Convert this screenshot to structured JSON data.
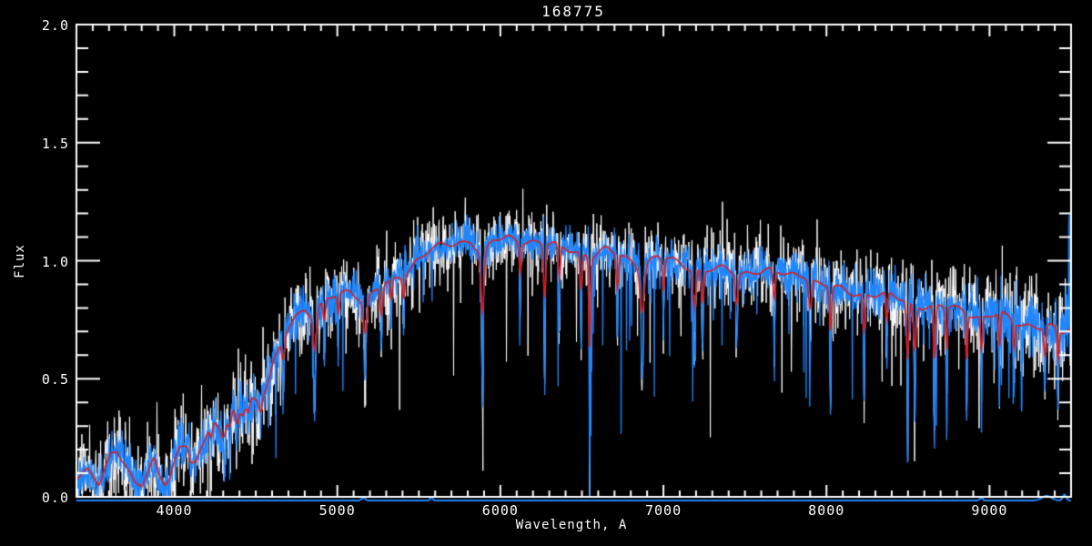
{
  "title": "168775",
  "axes": {
    "xlabel": "Wavelength, A",
    "ylabel": "Flux",
    "xlim": [
      3400,
      9500
    ],
    "ylim": [
      0.0,
      2.0
    ],
    "x_major_ticks": [
      4000,
      5000,
      6000,
      7000,
      8000,
      9000
    ],
    "x_minor_step": 100,
    "y_major_ticks": [
      {
        "label": "0.0",
        "value": 0.0
      },
      {
        "label": "0.5",
        "value": 0.5
      },
      {
        "label": "1.0",
        "value": 1.0
      },
      {
        "label": "1.5",
        "value": 1.5
      },
      {
        "label": "2.0",
        "value": 2.0
      }
    ],
    "y_minor_step": 0.1
  },
  "colors": {
    "background": "#000000",
    "axis": "#ffffff",
    "trace_white": "#ffffff",
    "trace_blue": "#1e86ff",
    "template_red": "#e11919",
    "zero_line_blue": "#1e86ff"
  },
  "chart_data": {
    "type": "line",
    "title": "168775",
    "xlabel": "Wavelength, A",
    "ylabel": "Flux",
    "xlim": [
      3400,
      9500
    ],
    "ylim": [
      0.0,
      2.0
    ],
    "grid": false,
    "legend": false,
    "series": [
      {
        "name": "observed-spectrum-unsmoothed",
        "color": "#ffffff",
        "style": "noisy-line"
      },
      {
        "name": "observed-spectrum",
        "color": "#1e86ff",
        "style": "noisy-line"
      },
      {
        "name": "template-fit",
        "color": "#e11919",
        "style": "smooth-line"
      }
    ],
    "continuum_points": [
      [
        3400,
        0.09
      ],
      [
        3470,
        0.11
      ],
      [
        3540,
        0.045
      ],
      [
        3610,
        0.17
      ],
      [
        3650,
        0.2
      ],
      [
        3700,
        0.15
      ],
      [
        3760,
        0.06
      ],
      [
        3800,
        0.05
      ],
      [
        3840,
        0.11
      ],
      [
        3875,
        0.15
      ],
      [
        3905,
        0.08
      ],
      [
        3945,
        0.06
      ],
      [
        3990,
        0.14
      ],
      [
        4030,
        0.21
      ],
      [
        4080,
        0.23
      ],
      [
        4130,
        0.16
      ],
      [
        4180,
        0.21
      ],
      [
        4240,
        0.32
      ],
      [
        4290,
        0.28
      ],
      [
        4340,
        0.36
      ],
      [
        4380,
        0.4
      ],
      [
        4420,
        0.36
      ],
      [
        4460,
        0.42
      ],
      [
        4520,
        0.4
      ],
      [
        4570,
        0.46
      ],
      [
        4620,
        0.58
      ],
      [
        4680,
        0.7
      ],
      [
        4740,
        0.77
      ],
      [
        4800,
        0.8
      ],
      [
        4861,
        0.76
      ],
      [
        4920,
        0.82
      ],
      [
        5000,
        0.86
      ],
      [
        5080,
        0.88
      ],
      [
        5175,
        0.83
      ],
      [
        5250,
        0.88
      ],
      [
        5330,
        0.91
      ],
      [
        5410,
        0.95
      ],
      [
        5480,
        1.0
      ],
      [
        5560,
        1.04
      ],
      [
        5650,
        1.06
      ],
      [
        5740,
        1.08
      ],
      [
        5820,
        1.09
      ],
      [
        5893,
        1.02
      ],
      [
        5960,
        1.08
      ],
      [
        6050,
        1.1
      ],
      [
        6150,
        1.09
      ],
      [
        6250,
        1.07
      ],
      [
        6350,
        1.06
      ],
      [
        6450,
        1.05
      ],
      [
        6560,
        1.02
      ],
      [
        6650,
        1.04
      ],
      [
        6760,
        1.02
      ],
      [
        6870,
        0.98
      ],
      [
        6960,
        1.01
      ],
      [
        7060,
        1.0
      ],
      [
        7160,
        0.98
      ],
      [
        7260,
        0.96
      ],
      [
        7360,
        0.96
      ],
      [
        7460,
        0.95
      ],
      [
        7560,
        0.96
      ],
      [
        7660,
        0.95
      ],
      [
        7760,
        0.94
      ],
      [
        7860,
        0.95
      ],
      [
        7950,
        0.9
      ],
      [
        8050,
        0.88
      ],
      [
        8150,
        0.87
      ],
      [
        8250,
        0.86
      ],
      [
        8350,
        0.85
      ],
      [
        8450,
        0.84
      ],
      [
        8550,
        0.82
      ],
      [
        8660,
        0.8
      ],
      [
        8760,
        0.8
      ],
      [
        8860,
        0.79
      ],
      [
        8950,
        0.76
      ],
      [
        9060,
        0.77
      ],
      [
        9160,
        0.74
      ],
      [
        9260,
        0.73
      ],
      [
        9360,
        0.72
      ],
      [
        9440,
        0.69
      ],
      [
        9500,
        0.71
      ]
    ],
    "absorption_lines": [
      [
        3934,
        0.55,
        10
      ],
      [
        3969,
        0.5,
        9
      ],
      [
        4102,
        0.45,
        9
      ],
      [
        4227,
        0.45,
        6
      ],
      [
        4305,
        0.5,
        10
      ],
      [
        4340,
        0.45,
        7
      ],
      [
        4383,
        0.45,
        6
      ],
      [
        4455,
        0.35,
        6
      ],
      [
        4531,
        0.35,
        6
      ],
      [
        4668,
        0.35,
        6
      ],
      [
        4861,
        0.5,
        7
      ],
      [
        4920,
        0.3,
        5
      ],
      [
        5007,
        0.25,
        5
      ],
      [
        5170,
        0.45,
        8
      ],
      [
        5270,
        0.35,
        6
      ],
      [
        5330,
        0.25,
        5
      ],
      [
        5406,
        0.25,
        5
      ],
      [
        5890,
        0.65,
        7
      ],
      [
        6122,
        0.3,
        5
      ],
      [
        6272,
        0.55,
        5
      ],
      [
        6361,
        0.35,
        5
      ],
      [
        6495,
        0.4,
        5
      ],
      [
        6548,
        0.97,
        4
      ],
      [
        6717,
        0.35,
        5
      ],
      [
        6870,
        0.5,
        9
      ],
      [
        7000,
        0.35,
        5
      ],
      [
        7190,
        0.45,
        7
      ],
      [
        7240,
        0.4,
        6
      ],
      [
        7450,
        0.35,
        6
      ],
      [
        7680,
        0.35,
        5
      ],
      [
        7900,
        0.35,
        6
      ],
      [
        8025,
        0.55,
        5
      ],
      [
        8230,
        0.5,
        5
      ],
      [
        8370,
        0.4,
        4
      ],
      [
        8498,
        0.78,
        5
      ],
      [
        8542,
        0.62,
        6
      ],
      [
        8662,
        0.78,
        5
      ],
      [
        8737,
        0.6,
        4
      ],
      [
        8860,
        0.68,
        4
      ],
      [
        8950,
        0.5,
        4
      ],
      [
        9061,
        0.5,
        4
      ],
      [
        9150,
        0.4,
        4
      ],
      [
        9340,
        0.45,
        5
      ],
      [
        9420,
        0.5,
        4
      ]
    ],
    "emission_spikes": [
      {
        "wavelength": 7594,
        "amp_blue": 0.13,
        "amp_white": 0.23,
        "width": 5
      },
      {
        "wavelength": 9487,
        "amp_blue": 0.62,
        "amp_white": 0.1,
        "width": 3
      }
    ],
    "noise_sigma_points": [
      [
        3400,
        0.05
      ],
      [
        4300,
        0.055
      ],
      [
        5200,
        0.045
      ],
      [
        6000,
        0.04
      ],
      [
        7000,
        0.042
      ],
      [
        8000,
        0.045
      ],
      [
        8800,
        0.055
      ],
      [
        9500,
        0.07
      ]
    ],
    "white_sigma_scale": 1.75,
    "zero_line": {
      "flux": 0.0,
      "bumps": [
        [
          5160,
          0.012,
          15
        ],
        [
          5577,
          0.014,
          10
        ],
        [
          8950,
          0.012,
          12
        ],
        [
          9350,
          0.02,
          40
        ],
        [
          9460,
          0.025,
          15
        ]
      ]
    }
  }
}
